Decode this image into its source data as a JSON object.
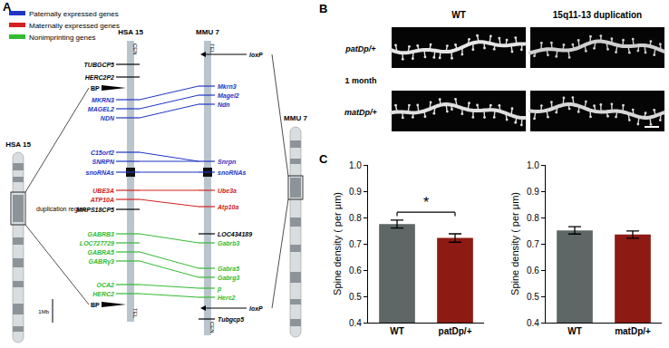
{
  "panel_labels": [
    "A",
    "B",
    "C"
  ],
  "diagram": {
    "legend": [
      {
        "label": "Paternally expressed genes",
        "color": "#1f35c4"
      },
      {
        "label": "Maternally expressed genes",
        "color": "#d42020"
      },
      {
        "label": "Nonimprinting genes",
        "color": "#33bb33"
      }
    ],
    "human": {
      "chromosome": "HSA 15",
      "column": "HSA 15",
      "top": "CEN",
      "bottom": "TEL",
      "region": "duplication region",
      "breakpoint": "BP",
      "scale": "1Mb",
      "genes": [
        {
          "name": "TUBGCP5",
          "color": "#000000"
        },
        {
          "name": "HERC2P2",
          "color": "#000000"
        },
        {
          "name": "MKRN3",
          "color": "#1f35c4"
        },
        {
          "name": "MAGEL2",
          "color": "#1f35c4"
        },
        {
          "name": "NDN",
          "color": "#1f35c4"
        },
        {
          "name": "C15orf2",
          "color": "#1f35c4"
        },
        {
          "name": "SNRPN",
          "color": "#1f35c4"
        },
        {
          "name": "snoRNAs",
          "color": "#1f35c4"
        },
        {
          "name": "UBE3A",
          "color": "#d42020"
        },
        {
          "name": "ATP10A",
          "color": "#d42020"
        },
        {
          "name": "MRPS18CP5",
          "color": "#000000"
        },
        {
          "name": "GABRB3",
          "color": "#33bb33"
        },
        {
          "name": "LOC727729",
          "color": "#33bb33"
        },
        {
          "name": "GABRA5",
          "color": "#33bb33"
        },
        {
          "name": "GABRγ3",
          "color": "#33bb33"
        },
        {
          "name": "OCA2",
          "color": "#33bb33"
        },
        {
          "name": "HERC2",
          "color": "#33bb33"
        }
      ]
    },
    "mouse": {
      "chromosome": "MMU 7",
      "column": "MMU 7",
      "top": "TEL",
      "bottom": "CEN",
      "genes": [
        {
          "name": "loxP",
          "color": "#000000",
          "marker": "arrow"
        },
        {
          "name": "Mkrn3",
          "color": "#1f35c4"
        },
        {
          "name": "Magel2",
          "color": "#1f35c4"
        },
        {
          "name": "Ndn",
          "color": "#1f35c4"
        },
        {
          "name": "Snrpn",
          "color": "#1f35c4"
        },
        {
          "name": "snoRNAs",
          "color": "#1f35c4"
        },
        {
          "name": "Ube3a",
          "color": "#d42020"
        },
        {
          "name": "Atp10a",
          "color": "#d42020"
        },
        {
          "name": "LOC434189",
          "color": "#000000"
        },
        {
          "name": "Gabrb3",
          "color": "#33bb33"
        },
        {
          "name": "Gabra5",
          "color": "#33bb33"
        },
        {
          "name": "Gabrg3",
          "color": "#33bb33"
        },
        {
          "name": "p",
          "color": "#33bb33"
        },
        {
          "name": "Herc2",
          "color": "#33bb33"
        },
        {
          "name": "loxP",
          "color": "#000000",
          "marker": "arrow"
        },
        {
          "name": "Tubgcp5",
          "color": "#000000"
        }
      ]
    },
    "links": [
      [
        "MKRN3",
        "Mkrn3"
      ],
      [
        "MAGEL2",
        "Magel2"
      ],
      [
        "NDN",
        "Ndn"
      ],
      [
        "C15orf2",
        "Snrpn"
      ],
      [
        "SNRPN",
        "Snrpn"
      ],
      [
        "snoRNAs",
        "snoRNAs"
      ],
      [
        "UBE3A",
        "Ube3a"
      ],
      [
        "ATP10A",
        "Atp10a"
      ],
      [
        "GABRB3",
        "Gabrb3"
      ],
      [
        "GABRA5",
        "Gabra5"
      ],
      [
        "GABRγ3",
        "Gabrg3"
      ],
      [
        "OCA2",
        "p"
      ],
      [
        "HERC2",
        "Herc2"
      ]
    ]
  },
  "images": {
    "columns": [
      "WT",
      "15q11-13 duplication"
    ],
    "rows": [
      "patDp/+",
      "matDp/+"
    ],
    "age": "1 month"
  },
  "chart_data": [
    {
      "type": "bar",
      "categories": [
        "WT",
        "patDp/+"
      ],
      "values": [
        0.775,
        0.722
      ],
      "errors": [
        0.015,
        0.016
      ],
      "colors": [
        "#5e6666",
        "#8e1a14"
      ],
      "y_label": "Spine density ( per μm)",
      "ylim": [
        0.4,
        1
      ],
      "yticks": [
        0.4,
        0.5,
        0.6,
        0.7,
        0.8,
        0.9,
        {
          "value": 1,
          "label": "1.0"
        }
      ],
      "grid": false,
      "annotations": [
        {
          "text": "*",
          "between": [
            "WT",
            "patDp/+"
          ]
        }
      ]
    },
    {
      "type": "bar",
      "categories": [
        "WT",
        "matDp/+"
      ],
      "values": [
        0.751,
        0.735
      ],
      "errors": [
        0.014,
        0.014
      ],
      "colors": [
        "#5e6666",
        "#8e1a14"
      ],
      "y_label": "Spine density ( per μm)",
      "ylim": [
        0.4,
        1
      ],
      "yticks": [
        0.4,
        0.5,
        0.6,
        0.7,
        0.8,
        0.9,
        {
          "value": 1,
          "label": "1.0"
        }
      ],
      "grid": false
    }
  ]
}
